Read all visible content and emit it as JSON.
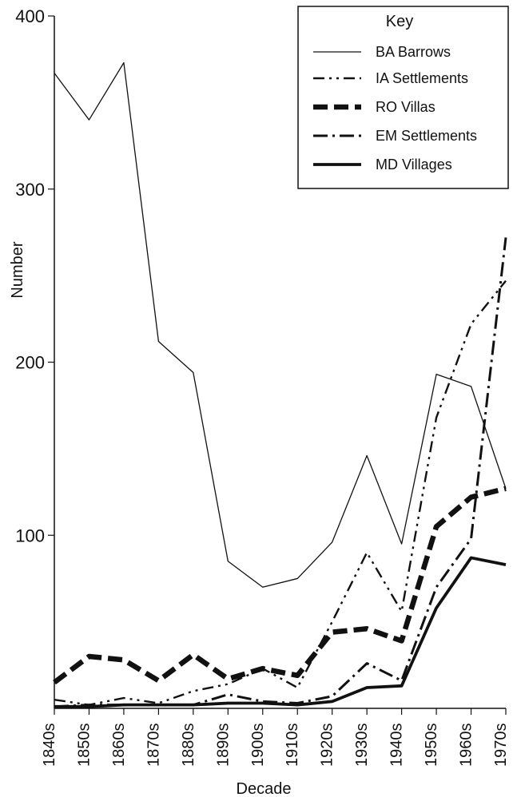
{
  "chart_data": {
    "type": "line",
    "categories": [
      "1840s",
      "1850s",
      "1860s",
      "1870s",
      "1880s",
      "1890s",
      "1900s",
      "1910s",
      "1920s",
      "1930s",
      "1940s",
      "1950s",
      "1960s",
      "1970s"
    ],
    "ylabel": "Number",
    "xlabel": "Decade",
    "ylim": [
      0,
      400
    ],
    "yticks": [
      100,
      200,
      300,
      400
    ],
    "legend": {
      "title": "Key",
      "position": "top-right"
    },
    "series": [
      {
        "name": "BA  Barrows",
        "values": [
          367,
          340,
          373,
          212,
          194,
          85,
          70,
          75,
          96,
          146,
          95,
          193,
          186,
          127
        ]
      },
      {
        "name": "IA Settlements",
        "values": [
          5,
          2,
          6,
          3,
          10,
          14,
          23,
          12,
          50,
          90,
          56,
          168,
          222,
          247
        ]
      },
      {
        "name": "RO Villas",
        "values": [
          15,
          30,
          28,
          16,
          31,
          17,
          23,
          19,
          44,
          46,
          39,
          105,
          122,
          127
        ]
      },
      {
        "name": "EM Settlements",
        "values": [
          1,
          2,
          2,
          2,
          2,
          8,
          4,
          3,
          7,
          26,
          16,
          70,
          98,
          272
        ]
      },
      {
        "name": "MD Villages",
        "values": [
          1,
          1,
          2,
          2,
          2,
          3,
          3,
          2,
          4,
          12,
          13,
          58,
          87,
          83
        ]
      }
    ]
  }
}
